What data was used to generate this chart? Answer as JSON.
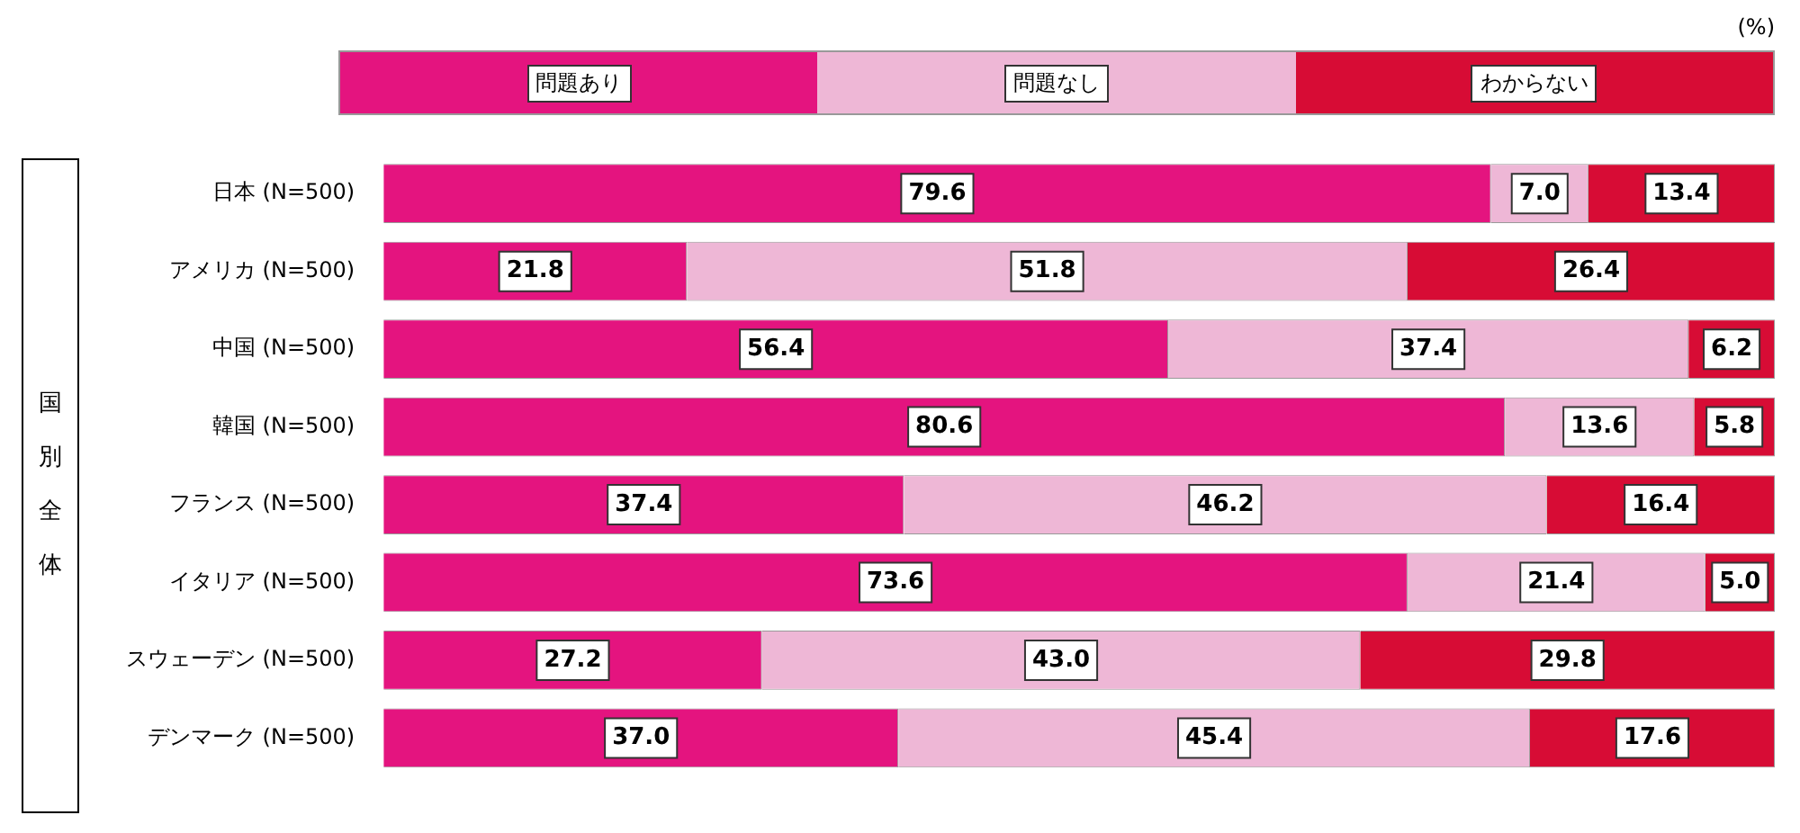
{
  "chart_data": {
    "type": "bar",
    "orientation": "horizontal",
    "stacked": true,
    "ylabel": "国別全体",
    "annotations": [
      "(%)"
    ],
    "categories": [
      "日本 (N=500)",
      "アメリカ (N=500)",
      "中国 (N=500)",
      "韓国 (N=500)",
      "フランス (N=500)",
      "イタリア (N=500)",
      "スウェーデン (N=500)",
      "デンマーク (N=500)"
    ],
    "series": [
      {
        "name": "問題あり",
        "color": "#e4147f",
        "values": [
          79.6,
          21.8,
          56.4,
          80.6,
          37.4,
          73.6,
          27.2,
          37.0
        ],
        "value_labels": [
          "79.6",
          "21.8",
          "56.4",
          "80.6",
          "37.4",
          "73.6",
          "27.2",
          "37.0"
        ]
      },
      {
        "name": "問題なし",
        "color": "#eeb7d6",
        "values": [
          7.0,
          51.8,
          37.4,
          13.6,
          46.2,
          21.4,
          43.0,
          45.4
        ],
        "value_labels": [
          "7.0",
          "51.8",
          "37.4",
          "13.6",
          "46.2",
          "21.4",
          "43.0",
          "45.4"
        ]
      },
      {
        "name": "わからない",
        "color": "#d70c35",
        "values": [
          13.4,
          26.4,
          6.2,
          5.8,
          16.4,
          5.0,
          29.8,
          17.6
        ],
        "value_labels": [
          "13.4",
          "26.4",
          "6.2",
          "5.8",
          "16.4",
          "5.0",
          "29.8",
          "17.6"
        ]
      }
    ],
    "xlim": [
      0,
      100
    ],
    "tick_labels": "y",
    "legend": "top"
  }
}
